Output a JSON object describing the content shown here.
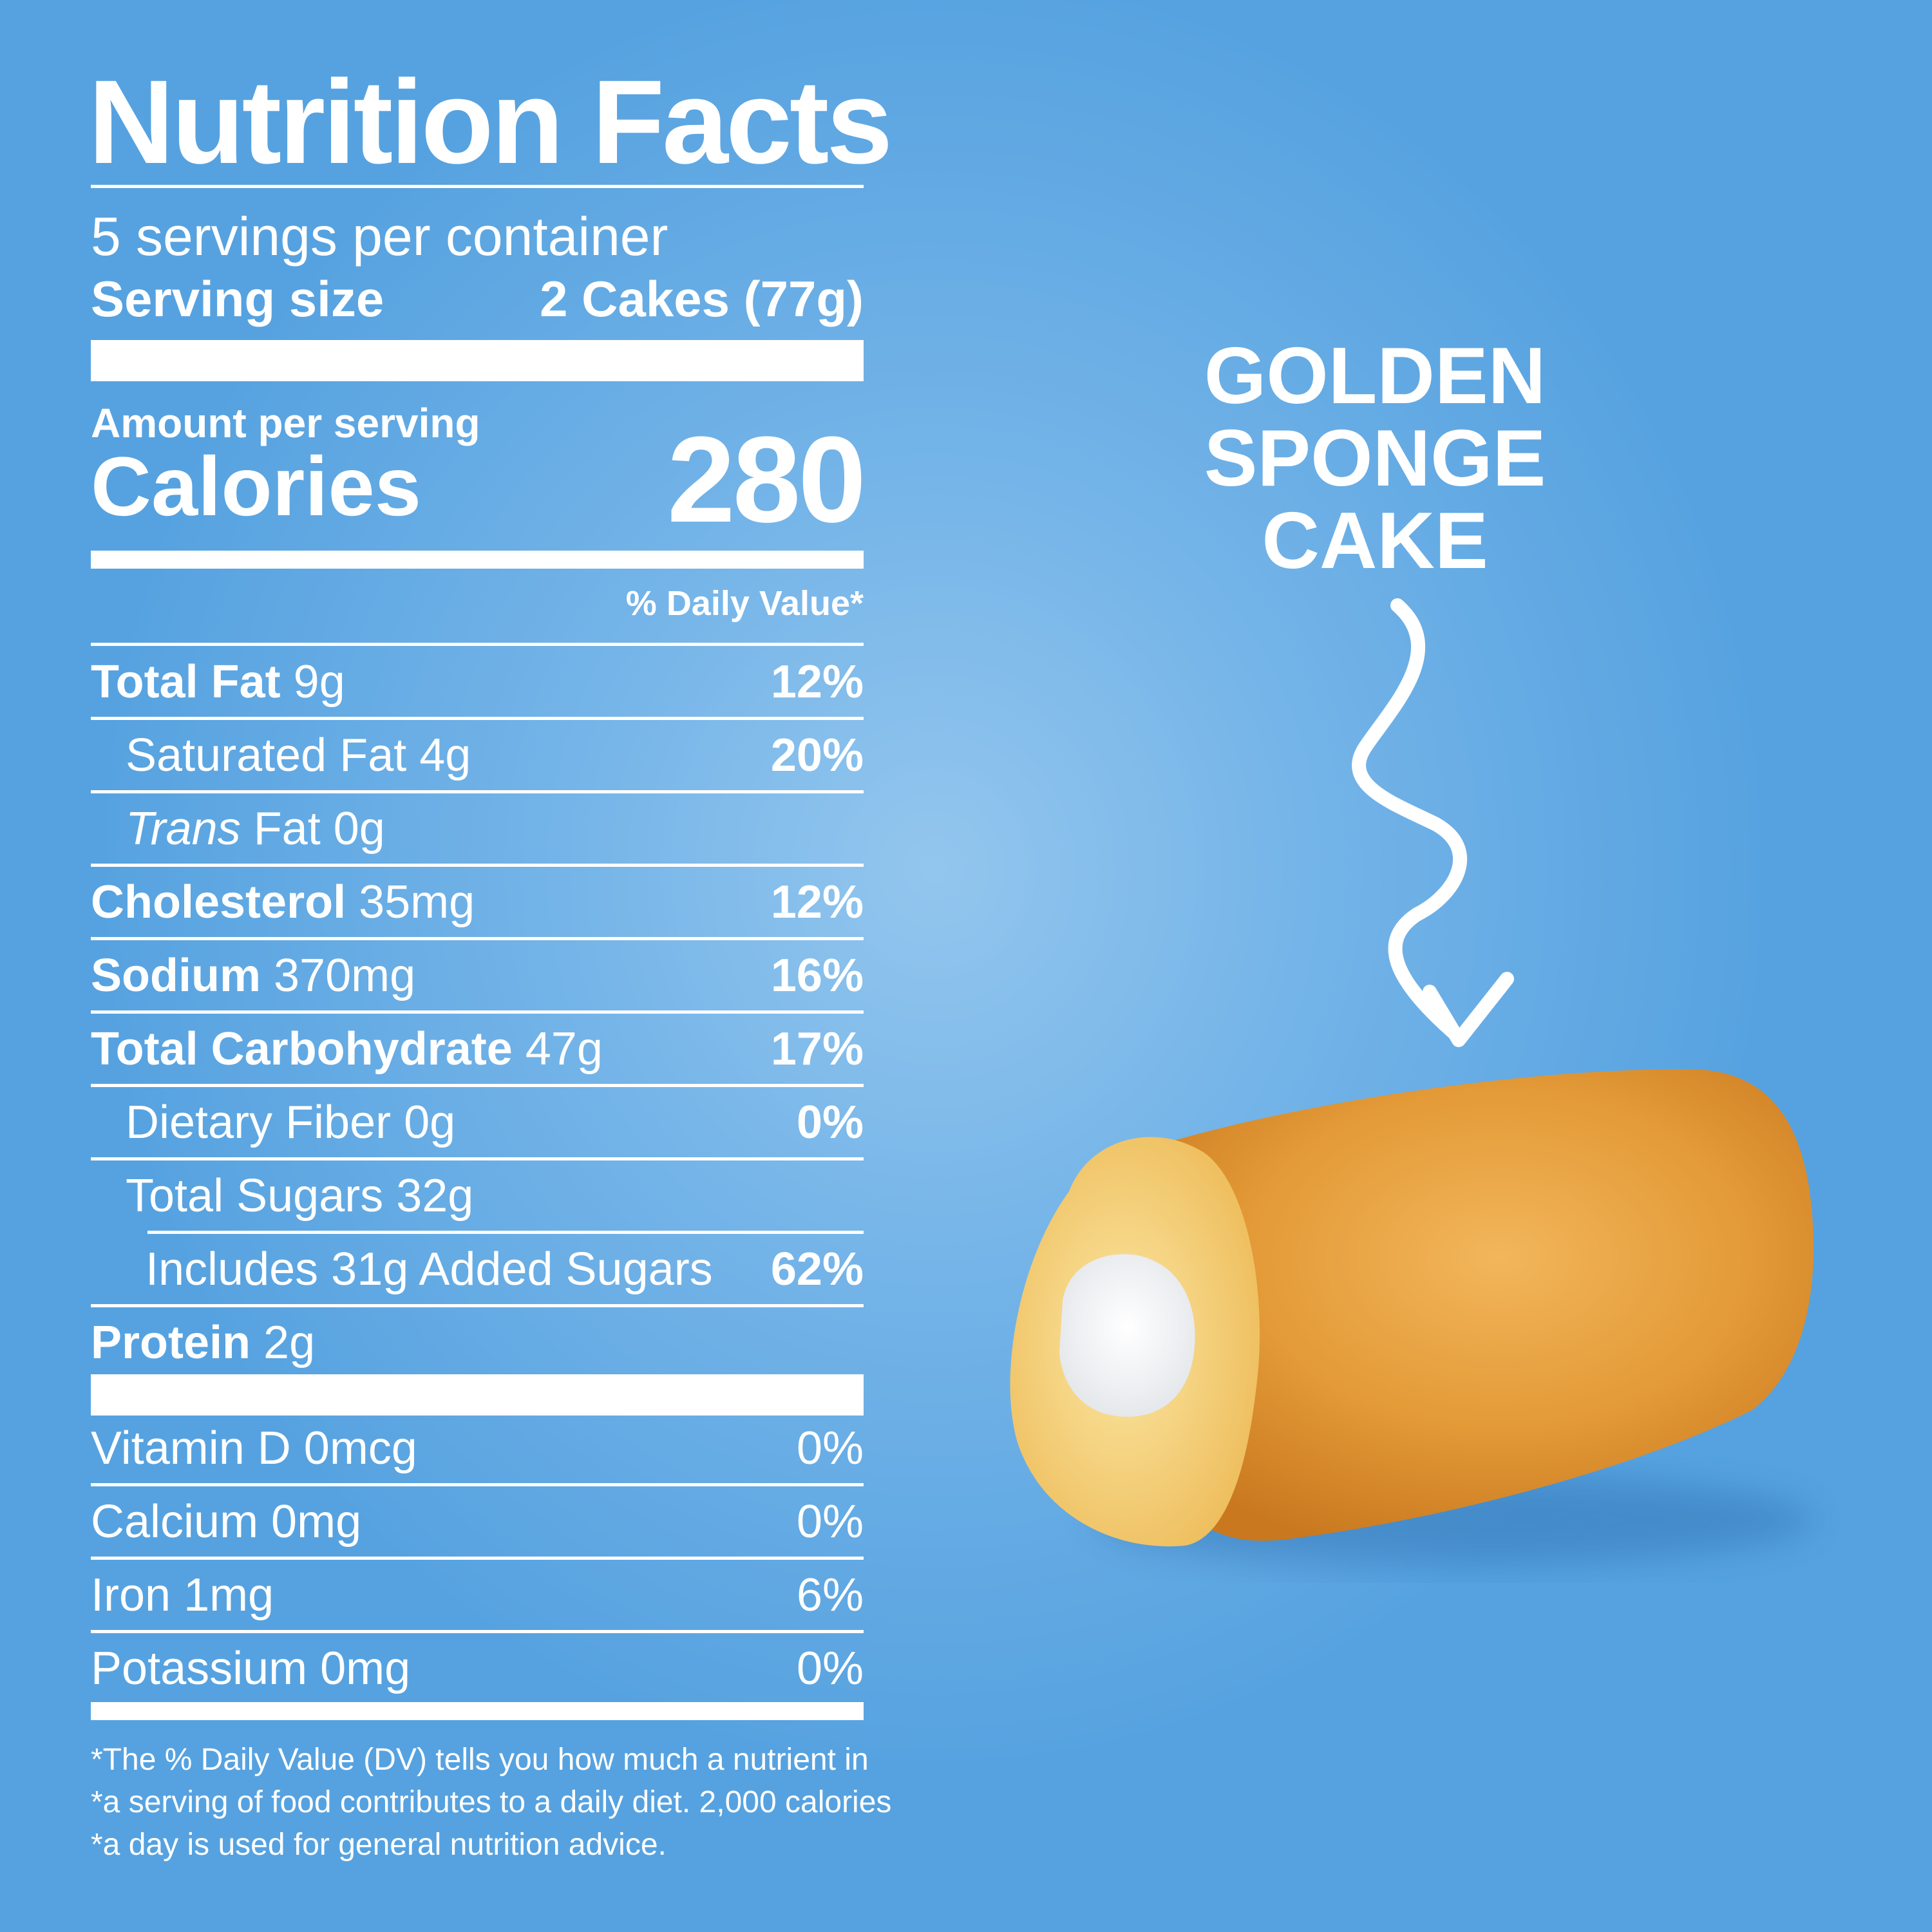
{
  "label": {
    "title": "Nutrition Facts",
    "servings_per_container": "5 servings per container",
    "serving_size_label": "Serving size",
    "serving_size_value": "2 Cakes (77g)",
    "amount_per_serving": "Amount per serving",
    "calories_label": "Calories",
    "calories_value": "280",
    "daily_value_header": "% Daily Value*",
    "nutrients": [
      {
        "name": "Total Fat",
        "amount": "9g",
        "dv": "12%"
      },
      {
        "name": "Saturated Fat 4g",
        "dv": "20%"
      },
      {
        "name_italic": "Trans",
        "name": "Fat 0g"
      },
      {
        "name": "Cholesterol",
        "amount": "35mg",
        "dv": "12%"
      },
      {
        "name": "Sodium",
        "amount": "370mg",
        "dv": "16%"
      },
      {
        "name": "Total Carbohydrate",
        "amount": "47g",
        "dv": "17%"
      },
      {
        "name": "Dietary Fiber 0g",
        "dv": "0%"
      },
      {
        "name": "Total Sugars 32g"
      },
      {
        "name": "Includes 31g Added Sugars",
        "dv": "62%"
      },
      {
        "name": "Protein",
        "amount": "2g"
      }
    ],
    "vitamins": [
      {
        "name": "Vitamin D 0mcg",
        "dv": "0%"
      },
      {
        "name": "Calcium 0mg",
        "dv": "0%"
      },
      {
        "name": "Iron 1mg",
        "dv": "6%"
      },
      {
        "name": "Potassium 0mg",
        "dv": "0%"
      }
    ],
    "footnote": [
      "*The % Daily Value (DV) tells you how much a nutrient in",
      "*a serving of food contributes to a daily diet. 2,000 calories",
      "*a day is used for general nutrition advice."
    ]
  },
  "callout": {
    "lines": [
      "GOLDEN",
      "SPONGE",
      "CAKE"
    ]
  },
  "colors": {
    "background": "#5aa5e2",
    "text": "#ffffff"
  },
  "icons": {
    "arrow": "squiggly-down-arrow-icon",
    "product": "sponge-cake-image"
  }
}
